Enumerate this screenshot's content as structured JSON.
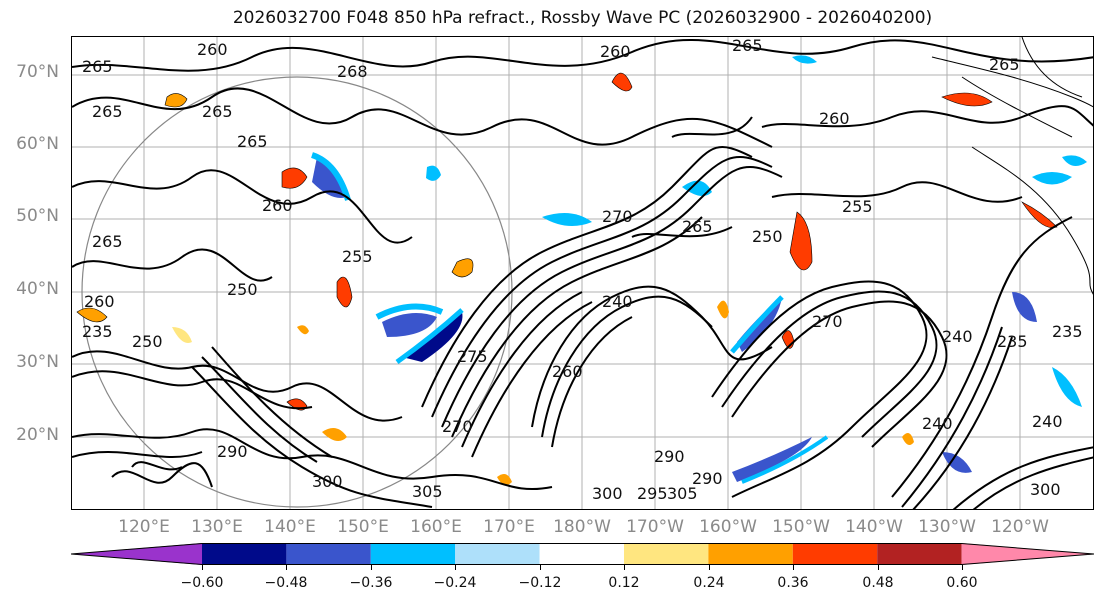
{
  "title": "2026032700 F048 850 hPa refract., Rossby Wave PC (2026032900 - 2026040200)",
  "lat_labels": [
    "70°N",
    "60°N",
    "50°N",
    "40°N",
    "30°N",
    "20°N"
  ],
  "lon_labels": [
    "120°E",
    "130°E",
    "140°E",
    "150°E",
    "160°E",
    "170°E",
    "180°W",
    "170°W",
    "160°W",
    "150°W",
    "140°W",
    "130°W",
    "120°W"
  ],
  "colorbar": {
    "ticks": [
      "−0.60",
      "−0.48",
      "−0.36",
      "−0.24",
      "−0.12",
      "0.12",
      "0.24",
      "0.36",
      "0.48",
      "0.60"
    ],
    "colors": [
      "#9a33cc",
      "#000a8a",
      "#3a55cc",
      "#00bfff",
      "#aee0fa",
      "#ffffff",
      "#ffe680",
      "#ffa000",
      "#ff3c00",
      "#b22222",
      "#ff88aa"
    ]
  },
  "contour_labels": [
    "260",
    "265",
    "268",
    "265",
    "265",
    "265",
    "260",
    "260",
    "265",
    "265",
    "260",
    "265",
    "255",
    "250",
    "255",
    "250",
    "260",
    "240",
    "270",
    "265",
    "250",
    "235",
    "240",
    "270",
    "235",
    "235",
    "270",
    "275",
    "290",
    "300",
    "305",
    "295",
    "305",
    "300",
    "290",
    "290",
    "240",
    "300",
    "240",
    "260"
  ]
}
